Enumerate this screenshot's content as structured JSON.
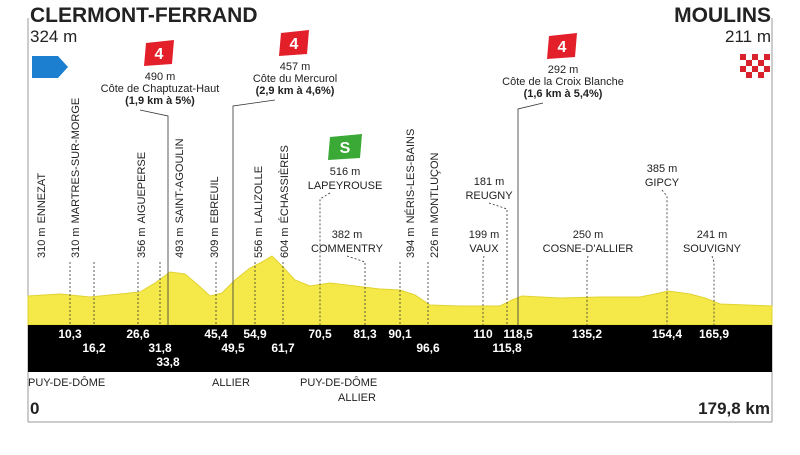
{
  "header": {
    "start_name": "CLERMONT-FERRAND",
    "start_altitude": "324 m",
    "finish_name": "MOULINS",
    "finish_altitude": "211 m"
  },
  "climbs": [
    {
      "category": "4",
      "altitude": "490 m",
      "name": "Côte de Chaptuzat-Haut",
      "detail": "(1,9 km à 5%)",
      "km": "33,8"
    },
    {
      "category": "4",
      "altitude": "457 m",
      "name": "Côte du Mercurol",
      "detail": "(2,9 km à 4,6%)",
      "km": "49,5"
    },
    {
      "category": "4",
      "altitude": "292 m",
      "name": "Côte de la Croix Blanche",
      "detail": "(1,6 km à 5,4%)",
      "km": "118,5"
    }
  ],
  "sprint": {
    "symbol": "S",
    "altitude": "516 m",
    "name": "LAPEYROUSE",
    "km": "70,5"
  },
  "towns_vertical": [
    {
      "altitude": "310 m",
      "name": "ENNEZAT",
      "km": "10,3"
    },
    {
      "altitude": "310 m",
      "name": "MARTRES-SUR-MORGE",
      "km": "16,2"
    },
    {
      "altitude": "356 m",
      "name": "AIGUEPERSE",
      "km": "26,6"
    },
    {
      "altitude": "493 m",
      "name": "SAINT-AGOULIN",
      "km": "31,8"
    },
    {
      "altitude": "309 m",
      "name": "EBREUIL",
      "km": "45,4"
    },
    {
      "altitude": "556 m",
      "name": "LALIZOLLE",
      "km": "54,9"
    },
    {
      "altitude": "604 m",
      "name": "ÉCHASSIÈRES",
      "km": "61,7"
    },
    {
      "altitude": "394 m",
      "name": "NÉRIS-LES-BAINS",
      "km": "90,1"
    },
    {
      "altitude": "226 m",
      "name": "MONTLUÇON",
      "km": "96,6"
    }
  ],
  "towns_horizontal": [
    {
      "altitude": "382 m",
      "name": "COMMENTRY",
      "km": "81,3"
    },
    {
      "altitude": "199 m",
      "name": "VAUX",
      "km": "110"
    },
    {
      "altitude": "181 m",
      "name": "REUGNY",
      "km": "115,8"
    },
    {
      "altitude": "250 m",
      "name": "COSNE-D'ALLIER",
      "km": "135,2"
    },
    {
      "altitude": "385 m",
      "name": "GIPCY",
      "km": "154,4"
    },
    {
      "altitude": "241 m",
      "name": "SOUVIGNY",
      "km": "165,9"
    }
  ],
  "departments": [
    "PUY-DE-DÔME",
    "ALLIER",
    "PUY-DE-DÔME",
    "ALLIER"
  ],
  "distance": {
    "start": "0",
    "end": "179,8 km"
  }
}
